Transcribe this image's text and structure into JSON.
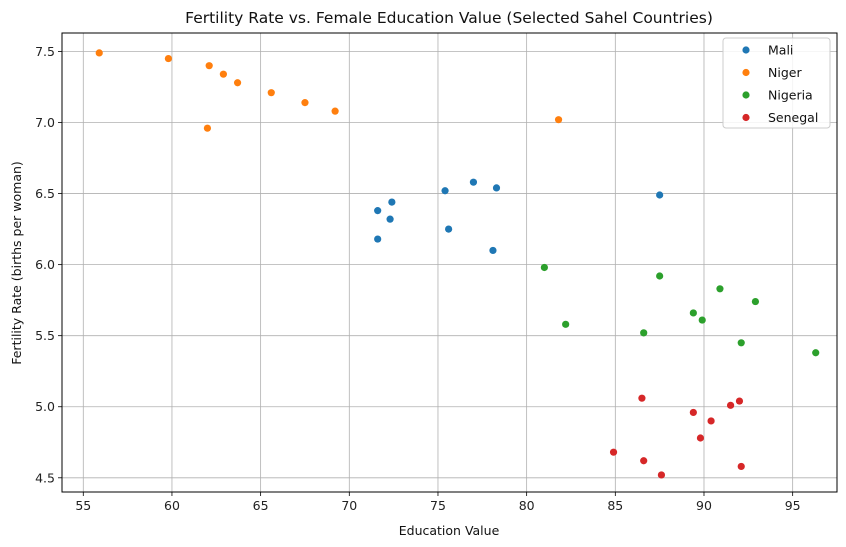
{
  "chart_data": {
    "type": "scatter",
    "title": "Fertility Rate vs. Female Education Value (Selected Sahel Countries)",
    "xlabel": "Education Value",
    "ylabel": "Fertility Rate (births per woman)",
    "xlim": [
      53.8,
      97.5
    ],
    "ylim": [
      4.4,
      7.63
    ],
    "xticks": [
      55,
      60,
      65,
      70,
      75,
      80,
      85,
      90,
      95
    ],
    "xtick_labels": [
      "55",
      "60",
      "65",
      "70",
      "75",
      "80",
      "85",
      "90",
      "95"
    ],
    "yticks": [
      4.5,
      5.0,
      5.5,
      6.0,
      6.5,
      7.0,
      7.5
    ],
    "ytick_labels": [
      "4.5",
      "5.0",
      "5.5",
      "6.0",
      "6.5",
      "7.0",
      "7.5"
    ],
    "grid": true,
    "legend_position": "top-right",
    "series": [
      {
        "name": "Mali",
        "color": "#1f77b4",
        "x": [
          71.6,
          72.3,
          72.4,
          71.6,
          75.4,
          75.6,
          77.0,
          78.3,
          78.1,
          87.5
        ],
        "y": [
          6.38,
          6.32,
          6.44,
          6.18,
          6.52,
          6.25,
          6.58,
          6.54,
          6.1,
          6.49
        ]
      },
      {
        "name": "Niger",
        "color": "#ff7f0e",
        "x": [
          55.9,
          59.8,
          62.1,
          62.9,
          63.7,
          65.6,
          67.5,
          69.2,
          62.0,
          81.8
        ],
        "y": [
          7.49,
          7.45,
          7.4,
          7.34,
          7.28,
          7.21,
          7.14,
          7.08,
          6.96,
          7.02
        ]
      },
      {
        "name": "Nigeria",
        "color": "#2ca02c",
        "x": [
          81.0,
          82.2,
          86.6,
          87.5,
          89.4,
          89.9,
          90.9,
          92.1,
          92.9,
          96.3
        ],
        "y": [
          5.98,
          5.58,
          5.52,
          5.92,
          5.66,
          5.61,
          5.83,
          5.45,
          5.74,
          5.38
        ]
      },
      {
        "name": "Senegal",
        "color": "#d62728",
        "x": [
          84.9,
          86.5,
          86.6,
          87.6,
          89.4,
          89.8,
          90.4,
          91.5,
          92.0,
          92.1
        ],
        "y": [
          4.68,
          5.06,
          4.62,
          4.52,
          4.96,
          4.78,
          4.9,
          5.01,
          5.04,
          4.58
        ]
      }
    ]
  }
}
